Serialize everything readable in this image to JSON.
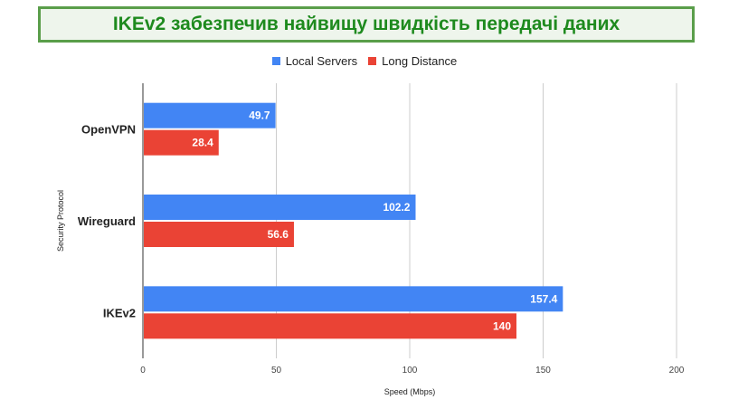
{
  "title": "IKEv2 забезпечив найвищу швидкість передачі даних",
  "chart_data": {
    "type": "bar",
    "orientation": "horizontal",
    "categories": [
      "OpenVPN",
      "Wireguard",
      "IKEv2"
    ],
    "series": [
      {
        "name": "Local Servers",
        "color": "#4285f4",
        "values": [
          49.7,
          102.2,
          157.4
        ]
      },
      {
        "name": "Long Distance",
        "color": "#ea4335",
        "values": [
          28.4,
          56.6,
          140
        ]
      }
    ],
    "xlabel": "Speed (Mbps)",
    "ylabel": "Security Protocol",
    "xlim": [
      0,
      200
    ],
    "xticks": [
      0,
      50,
      100,
      150,
      200
    ],
    "grid": true,
    "legend_position": "top-center"
  }
}
